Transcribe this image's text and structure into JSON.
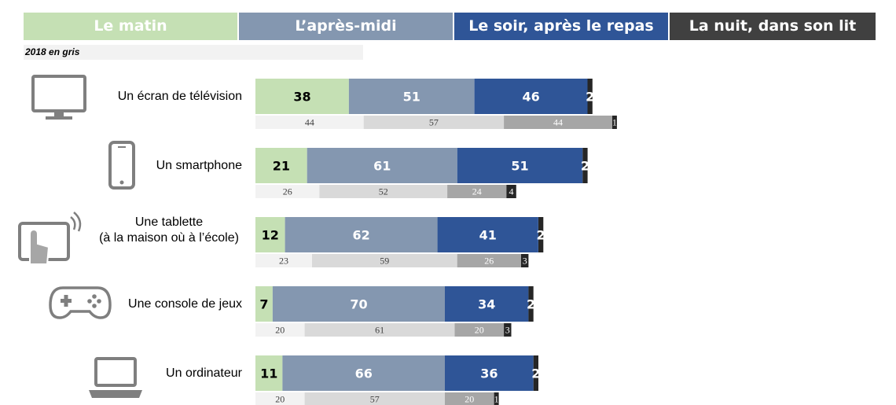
{
  "legend": [
    {
      "label": "Le matin",
      "color": "#c5e0b4"
    },
    {
      "label": "L’après-midi",
      "color": "#8497b0"
    },
    {
      "label": "Le soir, après le repas",
      "color": "#2f5597"
    },
    {
      "label": "La nuit, dans son lit",
      "color": "#404040"
    }
  ],
  "note": "2018 en gris",
  "chart_data": {
    "type": "bar",
    "stacked": true,
    "orientation": "horizontal",
    "categories": [
      [
        "Un écran de télévision"
      ],
      [
        "Un smartphone"
      ],
      [
        "Une tablette",
        "(à la maison où à l’école)"
      ],
      [
        "Une console de jeux"
      ],
      [
        "Un ordinateur"
      ]
    ],
    "icons": [
      "tv-icon",
      "smartphone-icon",
      "tablet-icon",
      "gamepad-icon",
      "laptop-icon"
    ],
    "series": [
      {
        "name": "Le matin",
        "values": [
          38,
          21,
          12,
          7,
          11
        ],
        "color": "#c5e0b4",
        "text_color": "#000000"
      },
      {
        "name": "L’après-midi",
        "values": [
          51,
          61,
          62,
          70,
          66
        ],
        "color": "#8497b0",
        "text_color": "#ffffff"
      },
      {
        "name": "Le soir, après le repas",
        "values": [
          46,
          51,
          41,
          34,
          36
        ],
        "color": "#2f5597",
        "text_color": "#ffffff"
      },
      {
        "name": "La nuit, dans son lit",
        "values": [
          2,
          2,
          2,
          2,
          2
        ],
        "color": "#262626",
        "text_color": "#ffffff"
      }
    ],
    "series_2018": [
      {
        "name": "Le matin",
        "values": [
          44,
          26,
          23,
          20,
          20
        ],
        "color": "#f2f2f2",
        "text_color": "#404040"
      },
      {
        "name": "L’après-midi",
        "values": [
          57,
          52,
          59,
          61,
          57
        ],
        "color": "#d9d9d9",
        "text_color": "#404040"
      },
      {
        "name": "Le soir, après le repas",
        "values": [
          44,
          24,
          26,
          20,
          20
        ],
        "color": "#a6a6a6",
        "text_color": "#ffffff"
      },
      {
        "name": "La nuit, dans son lit",
        "values": [
          1,
          4,
          3,
          3,
          1
        ],
        "color": "#262626",
        "text_color": "#ffffff"
      }
    ]
  }
}
